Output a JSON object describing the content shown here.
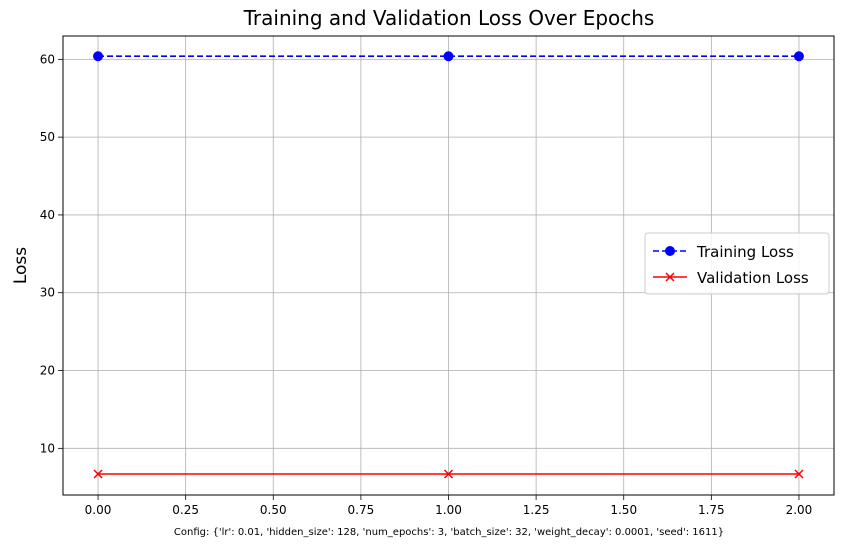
{
  "chart_data": {
    "type": "line",
    "title": "Training and Validation Loss Over Epochs",
    "xlabel": "",
    "ylabel": "Loss",
    "caption": "Config: {'lr': 0.01, 'hidden_size': 128, 'num_epochs': 3, 'batch_size': 32, 'weight_decay': 0.0001, 'seed': 1611}",
    "xlim": [
      -0.1,
      2.1
    ],
    "ylim": [
      4.0,
      63.0
    ],
    "x_ticks": [
      0.0,
      0.25,
      0.5,
      0.75,
      1.0,
      1.25,
      1.5,
      1.75,
      2.0
    ],
    "x_tick_labels": [
      "0.00",
      "0.25",
      "0.50",
      "0.75",
      "1.00",
      "1.25",
      "1.50",
      "1.75",
      "2.00"
    ],
    "y_ticks": [
      10,
      20,
      30,
      40,
      50,
      60
    ],
    "y_tick_labels": [
      "10",
      "20",
      "30",
      "40",
      "50",
      "60"
    ],
    "grid": true,
    "legend_position": "center-right",
    "x": [
      0,
      1,
      2
    ],
    "series": [
      {
        "name": "Training Loss",
        "values": [
          60.4,
          60.4,
          60.4
        ],
        "color": "#0000ff",
        "linestyle": "dashed",
        "marker": "circle"
      },
      {
        "name": "Validation Loss",
        "values": [
          6.7,
          6.7,
          6.7
        ],
        "color": "#ff0000",
        "linestyle": "solid",
        "marker": "x"
      }
    ]
  }
}
